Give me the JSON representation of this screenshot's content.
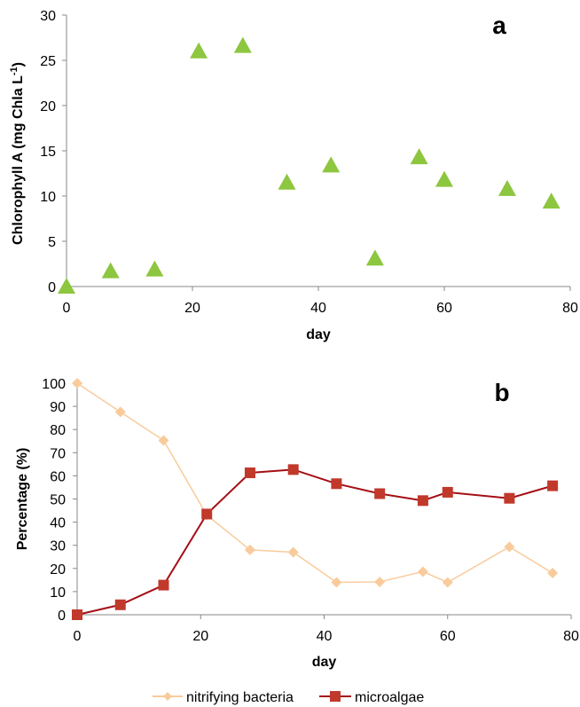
{
  "chart_data": [
    {
      "type": "scatter",
      "panel_label": "a",
      "xlabel": "day",
      "ylabel": "Chlorophyll A (mg Chla L",
      "ylabel_sup": "-1",
      "ylabel_end": ")",
      "xlim": [
        0,
        80
      ],
      "ylim": [
        0,
        30
      ],
      "xticks": [
        0,
        20,
        40,
        60,
        80
      ],
      "yticks": [
        0,
        5,
        10,
        15,
        20,
        25,
        30
      ],
      "grid": false,
      "marker": "triangle",
      "color": "#8DC63F",
      "series": [
        {
          "x": [
            0,
            7,
            14,
            21,
            28,
            35,
            42,
            49,
            56,
            60,
            70,
            77
          ],
          "y": [
            0,
            1.7,
            1.9,
            26,
            26.6,
            11.5,
            13.4,
            3.1,
            14.3,
            11.8,
            10.8,
            9.4
          ]
        }
      ]
    },
    {
      "type": "line",
      "panel_label": "b",
      "xlabel": "day",
      "ylabel": "Percentage (%)",
      "xlim": [
        0,
        80
      ],
      "ylim": [
        0,
        100
      ],
      "xticks": [
        0,
        20,
        40,
        60,
        80
      ],
      "yticks": [
        0,
        10,
        20,
        30,
        40,
        50,
        60,
        70,
        80,
        90,
        100
      ],
      "grid": false,
      "legend_position": "bottom",
      "x": [
        0,
        7,
        14,
        21,
        28,
        35,
        42,
        49,
        56,
        60,
        70,
        77
      ],
      "series": [
        {
          "name": "nitrifying bacteria",
          "marker": "diamond",
          "color": "#F9CB9C",
          "values": [
            100,
            87.6,
            75.3,
            43,
            28,
            27,
            14,
            14.2,
            18.6,
            14,
            29.3,
            18
          ]
        },
        {
          "name": "microalgae",
          "marker": "square",
          "color": "#C0392B",
          "line_color": "#A50F15",
          "values": [
            0,
            4.3,
            12.8,
            43.5,
            61.3,
            62.7,
            56.6,
            52.3,
            49.3,
            52.9,
            50.3,
            55.7
          ]
        }
      ]
    }
  ]
}
